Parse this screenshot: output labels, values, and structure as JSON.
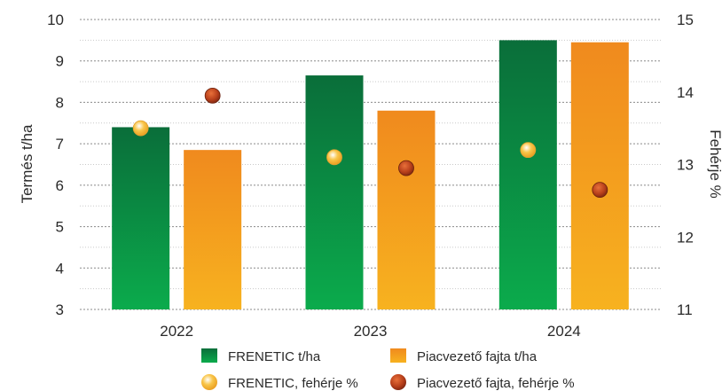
{
  "chart_data": {
    "type": "bar",
    "categories": [
      "2022",
      "2023",
      "2024"
    ],
    "series": [
      {
        "name": "FRENETIC t/ha",
        "kind": "bar",
        "axis": "left",
        "values": [
          7.4,
          8.65,
          9.5
        ]
      },
      {
        "name": "Piacvezető fajta t/ha",
        "kind": "bar",
        "axis": "left",
        "values": [
          6.85,
          7.8,
          9.45
        ]
      },
      {
        "name": "FRENETIC, fehérje %",
        "kind": "point",
        "axis": "right",
        "values": [
          13.5,
          13.1,
          13.2
        ]
      },
      {
        "name": "Piacvezető fajta, fehérje %",
        "kind": "point",
        "axis": "right",
        "values": [
          13.95,
          12.95,
          12.65
        ]
      }
    ],
    "ylabel": "Termés t/ha",
    "y2label": "Fehérje %",
    "ylim": [
      3,
      10
    ],
    "y2lim": [
      11,
      15
    ],
    "yticks": [
      "3",
      "4",
      "5",
      "6",
      "7",
      "8",
      "9",
      "10"
    ],
    "y2ticks": [
      "11",
      "12",
      "13",
      "14",
      "15"
    ],
    "grid": true,
    "legend_position": "bottom",
    "colors": {
      "frenetic_top": "#0a6e3a",
      "frenetic_bottom": "#0bab4c",
      "piac_top": "#f08a1e",
      "piac_bottom": "#f7b21f",
      "frenetic_dot": "#f9c64a",
      "piac_dot": "#b8401b"
    }
  }
}
